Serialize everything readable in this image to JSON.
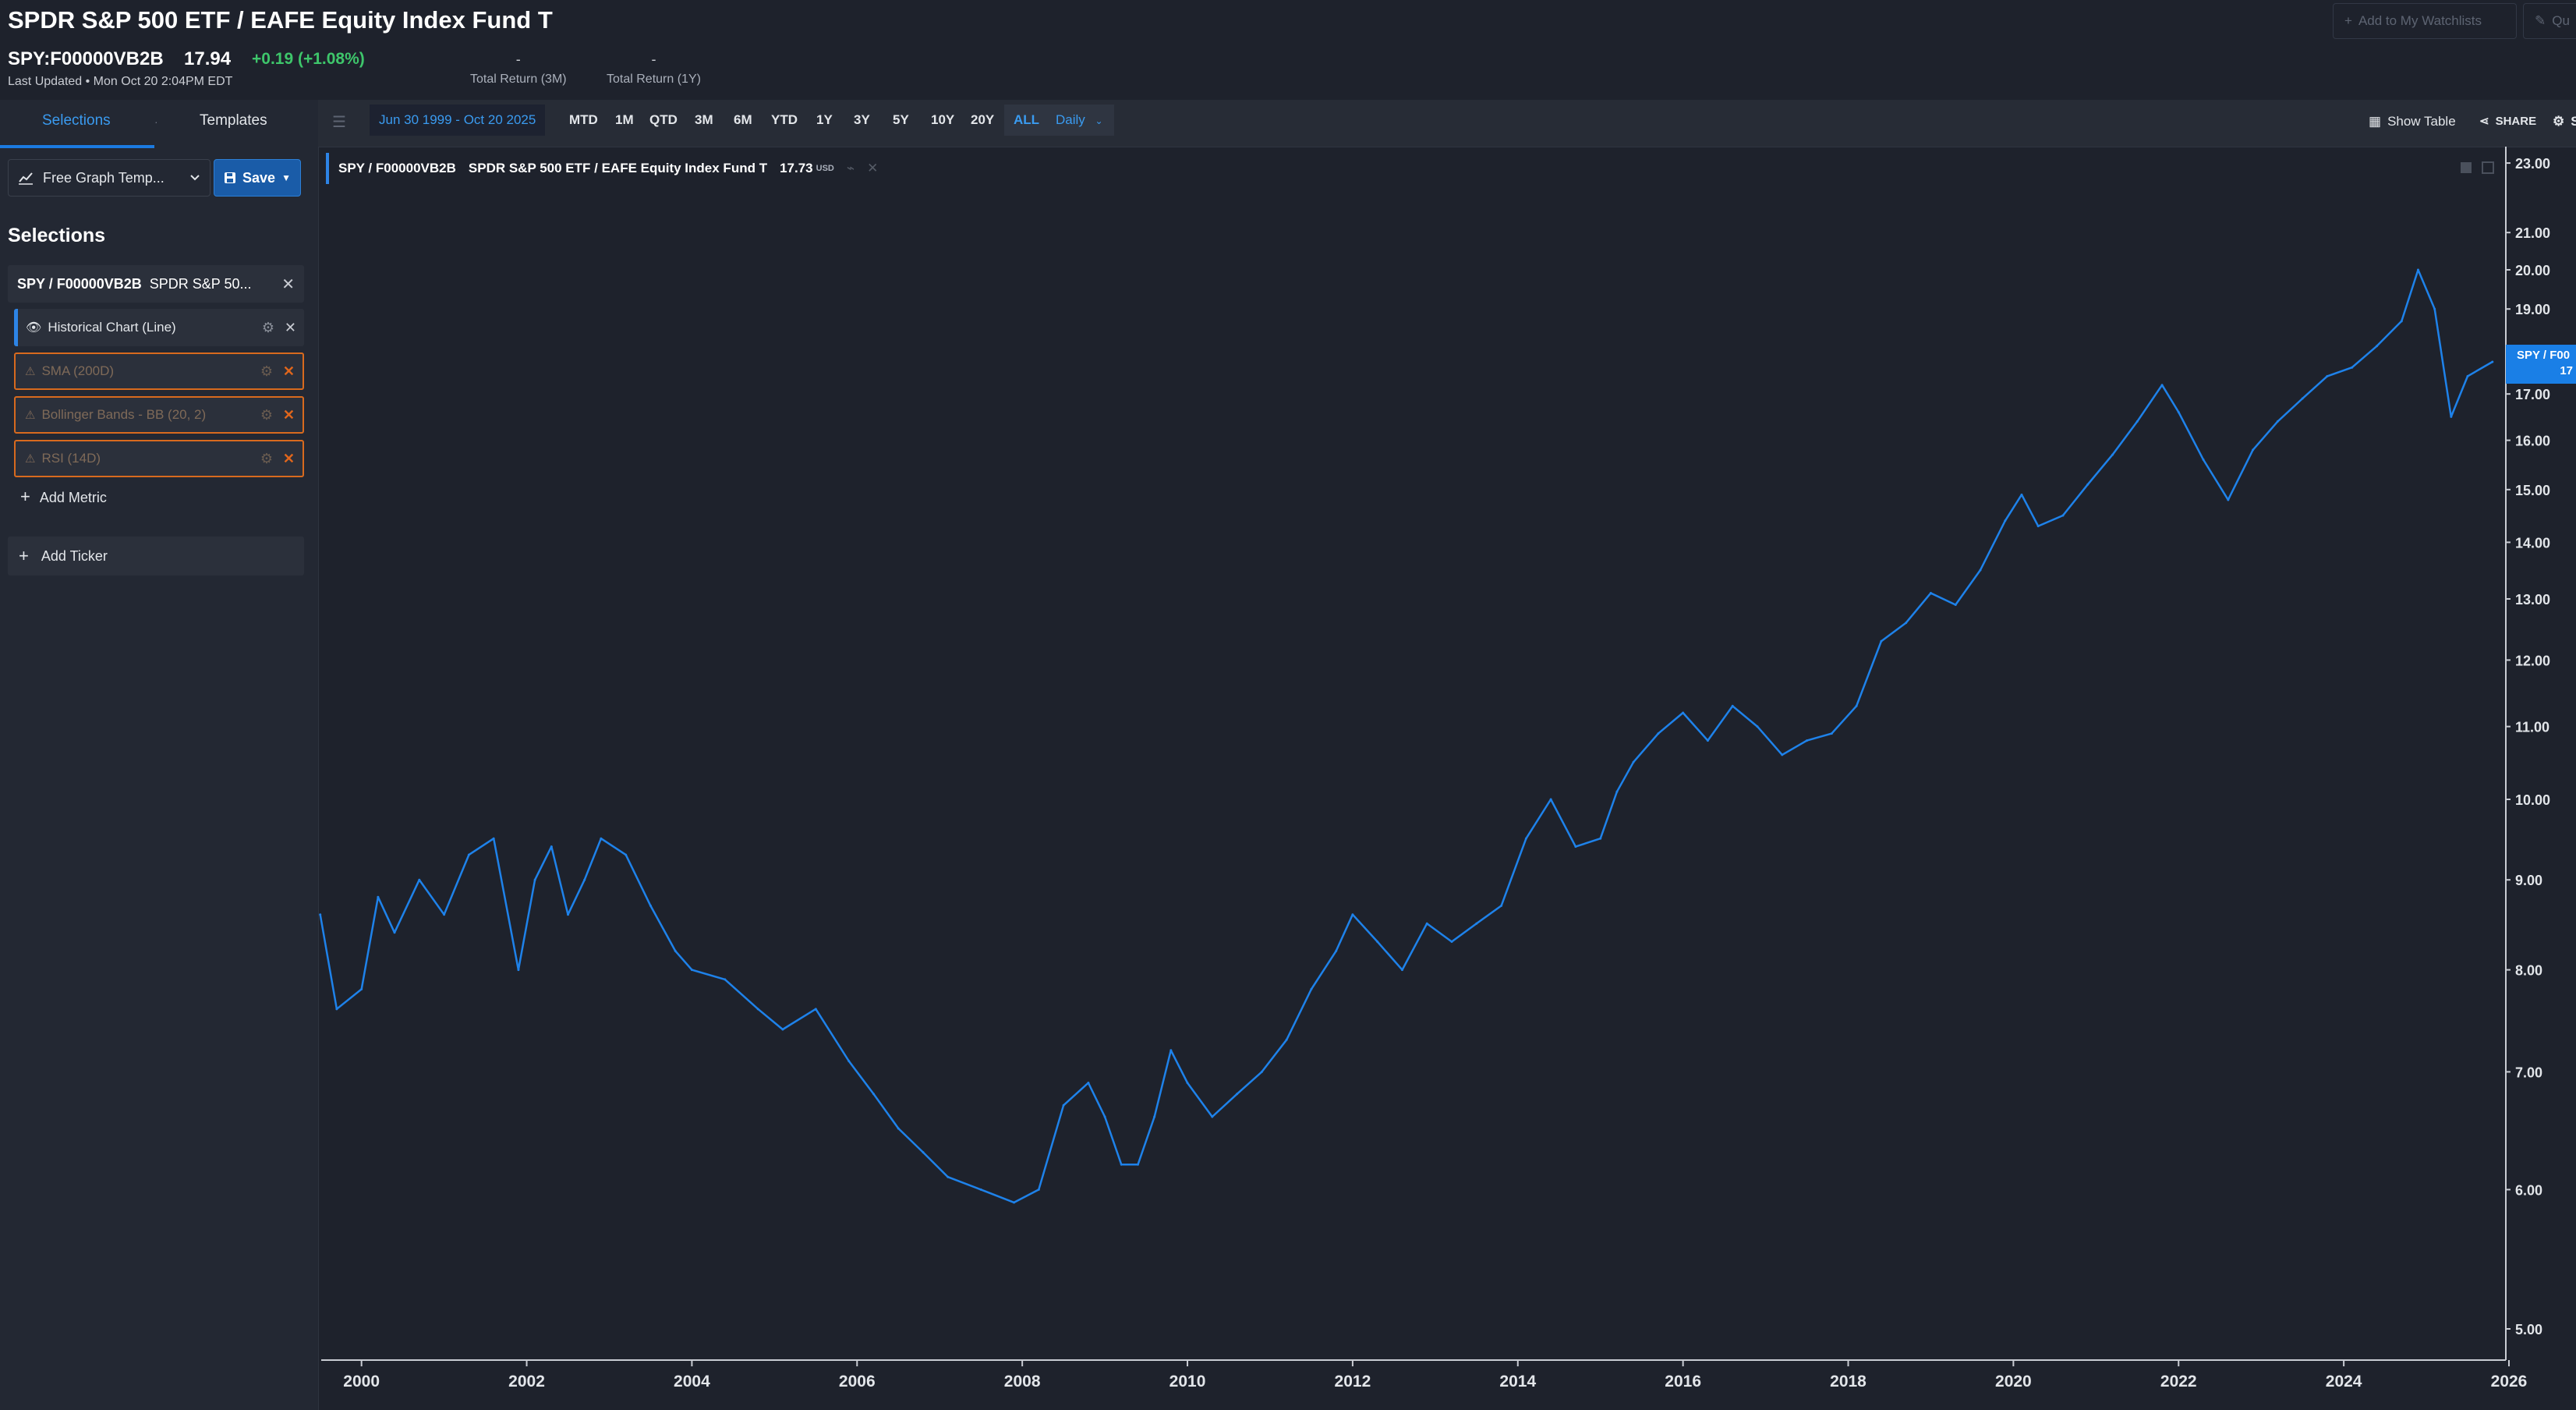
{
  "header": {
    "title": "SPDR S&P 500 ETF / EAFE Equity Index Fund T",
    "ticker": "SPY:F00000VB2B",
    "price": "17.94",
    "change": "+0.19",
    "change_pct": "(+1.08%)",
    "last_updated": "Last Updated • Mon Oct 20 2:04PM EDT",
    "total_return_3m": {
      "value": "-",
      "label": "Total Return (3M)"
    },
    "total_return_1y": {
      "value": "-",
      "label": "Total Return (1Y)"
    },
    "watchlist_button": "Add to My Watchlists",
    "quote_button": "Qu"
  },
  "left": {
    "tabs": [
      "Selections",
      "Templates"
    ],
    "template_dropdown": "Free Graph Temp...",
    "save_button": "Save",
    "heading": "Selections",
    "ticker_card": {
      "symbol": "SPY / F00000VB2B",
      "name": "SPDR S&P 50..."
    },
    "metrics": [
      {
        "label": "Historical Chart (Line)",
        "status": "ok"
      },
      {
        "label": "SMA (200D)",
        "status": "warning"
      },
      {
        "label": "Bollinger Bands - BB (20, 2)",
        "status": "warning"
      },
      {
        "label": "RSI (14D)",
        "status": "warning"
      }
    ],
    "add_metric": "Add Metric",
    "add_ticker": "Add Ticker"
  },
  "toolbar": {
    "date_range": "Jun 30 1999 - Oct 20 2025",
    "periods": [
      "MTD",
      "1M",
      "QTD",
      "3M",
      "6M",
      "YTD",
      "1Y",
      "3Y",
      "5Y",
      "10Y",
      "20Y",
      "ALL"
    ],
    "active_period": "ALL",
    "interval": "Daily",
    "show_table": "Show Table",
    "share": "SHARE",
    "settings": "S"
  },
  "legend": {
    "symbol": "SPY / F00000VB2B",
    "name": "SPDR S&P 500 ETF / EAFE Equity Index Fund T",
    "value": "17.73",
    "currency": "USD"
  },
  "last_price_badge": {
    "line1": "SPY / F00",
    "line2": "17"
  },
  "colors": {
    "line": "#1e82ea",
    "background": "#1e222c",
    "accent": "#3a9bf0",
    "positive": "#3ec66b",
    "warning": "#d86a1e"
  },
  "chart_data": {
    "type": "line",
    "y_scale": "log",
    "ylim": [
      4.8,
      23.5
    ],
    "y_ticks": [
      "5.00",
      "6.00",
      "7.00",
      "8.00",
      "9.00",
      "10.00",
      "11.00",
      "12.00",
      "13.00",
      "14.00",
      "15.00",
      "16.00",
      "17.00",
      "19.00",
      "20.00",
      "21.00",
      "23.00"
    ],
    "x_ticks": [
      "2000",
      "2002",
      "2004",
      "2006",
      "2008",
      "2010",
      "2012",
      "2014",
      "2016",
      "2018",
      "2020",
      "2022",
      "2024",
      "2026"
    ],
    "series": [
      {
        "name": "SPY / F00000VB2B",
        "x": [
          1999.5,
          1999.7,
          2000.0,
          2000.2,
          2000.4,
          2000.7,
          2001.0,
          2001.3,
          2001.6,
          2001.9,
          2002.1,
          2002.3,
          2002.5,
          2002.7,
          2002.9,
          2003.2,
          2003.5,
          2003.8,
          2004.0,
          2004.4,
          2004.8,
          2005.1,
          2005.5,
          2005.9,
          2006.2,
          2006.5,
          2006.8,
          2007.1,
          2007.5,
          2007.9,
          2008.2,
          2008.5,
          2008.8,
          2009.0,
          2009.2,
          2009.4,
          2009.6,
          2009.8,
          2010.0,
          2010.3,
          2010.6,
          2010.9,
          2011.2,
          2011.5,
          2011.8,
          2012.0,
          2012.3,
          2012.6,
          2012.9,
          2013.2,
          2013.5,
          2013.8,
          2014.1,
          2014.4,
          2014.7,
          2015.0,
          2015.2,
          2015.4,
          2015.7,
          2016.0,
          2016.3,
          2016.6,
          2016.9,
          2017.2,
          2017.5,
          2017.8,
          2018.1,
          2018.4,
          2018.7,
          2019.0,
          2019.3,
          2019.6,
          2019.9,
          2020.1,
          2020.3,
          2020.6,
          2020.9,
          2021.2,
          2021.5,
          2021.8,
          2022.0,
          2022.3,
          2022.6,
          2022.9,
          2023.2,
          2023.5,
          2023.8,
          2024.1,
          2024.4,
          2024.7,
          2024.9,
          2025.1,
          2025.3,
          2025.5,
          2025.8
        ],
        "values": [
          8.6,
          7.6,
          7.8,
          8.8,
          8.4,
          9.0,
          8.6,
          9.3,
          9.5,
          8.0,
          9.0,
          9.4,
          8.6,
          9.0,
          9.5,
          9.3,
          8.7,
          8.2,
          8.0,
          7.9,
          7.6,
          7.4,
          7.6,
          7.1,
          6.8,
          6.5,
          6.3,
          6.1,
          6.0,
          5.9,
          6.0,
          6.7,
          6.9,
          6.6,
          6.2,
          6.2,
          6.6,
          7.2,
          6.9,
          6.6,
          6.8,
          7.0,
          7.3,
          7.8,
          8.2,
          8.6,
          8.3,
          8.0,
          8.5,
          8.3,
          8.5,
          8.7,
          9.5,
          10.0,
          9.4,
          9.5,
          10.1,
          10.5,
          10.9,
          11.2,
          10.8,
          11.3,
          11.0,
          10.6,
          10.8,
          10.9,
          11.3,
          12.3,
          12.6,
          13.1,
          12.9,
          13.5,
          14.4,
          14.9,
          14.3,
          14.5,
          15.1,
          15.7,
          16.4,
          17.2,
          16.6,
          15.6,
          14.8,
          15.8,
          16.4,
          16.9,
          17.4,
          17.6,
          18.1,
          18.7,
          20.0,
          19.0,
          16.5,
          17.4,
          17.73
        ]
      }
    ]
  }
}
